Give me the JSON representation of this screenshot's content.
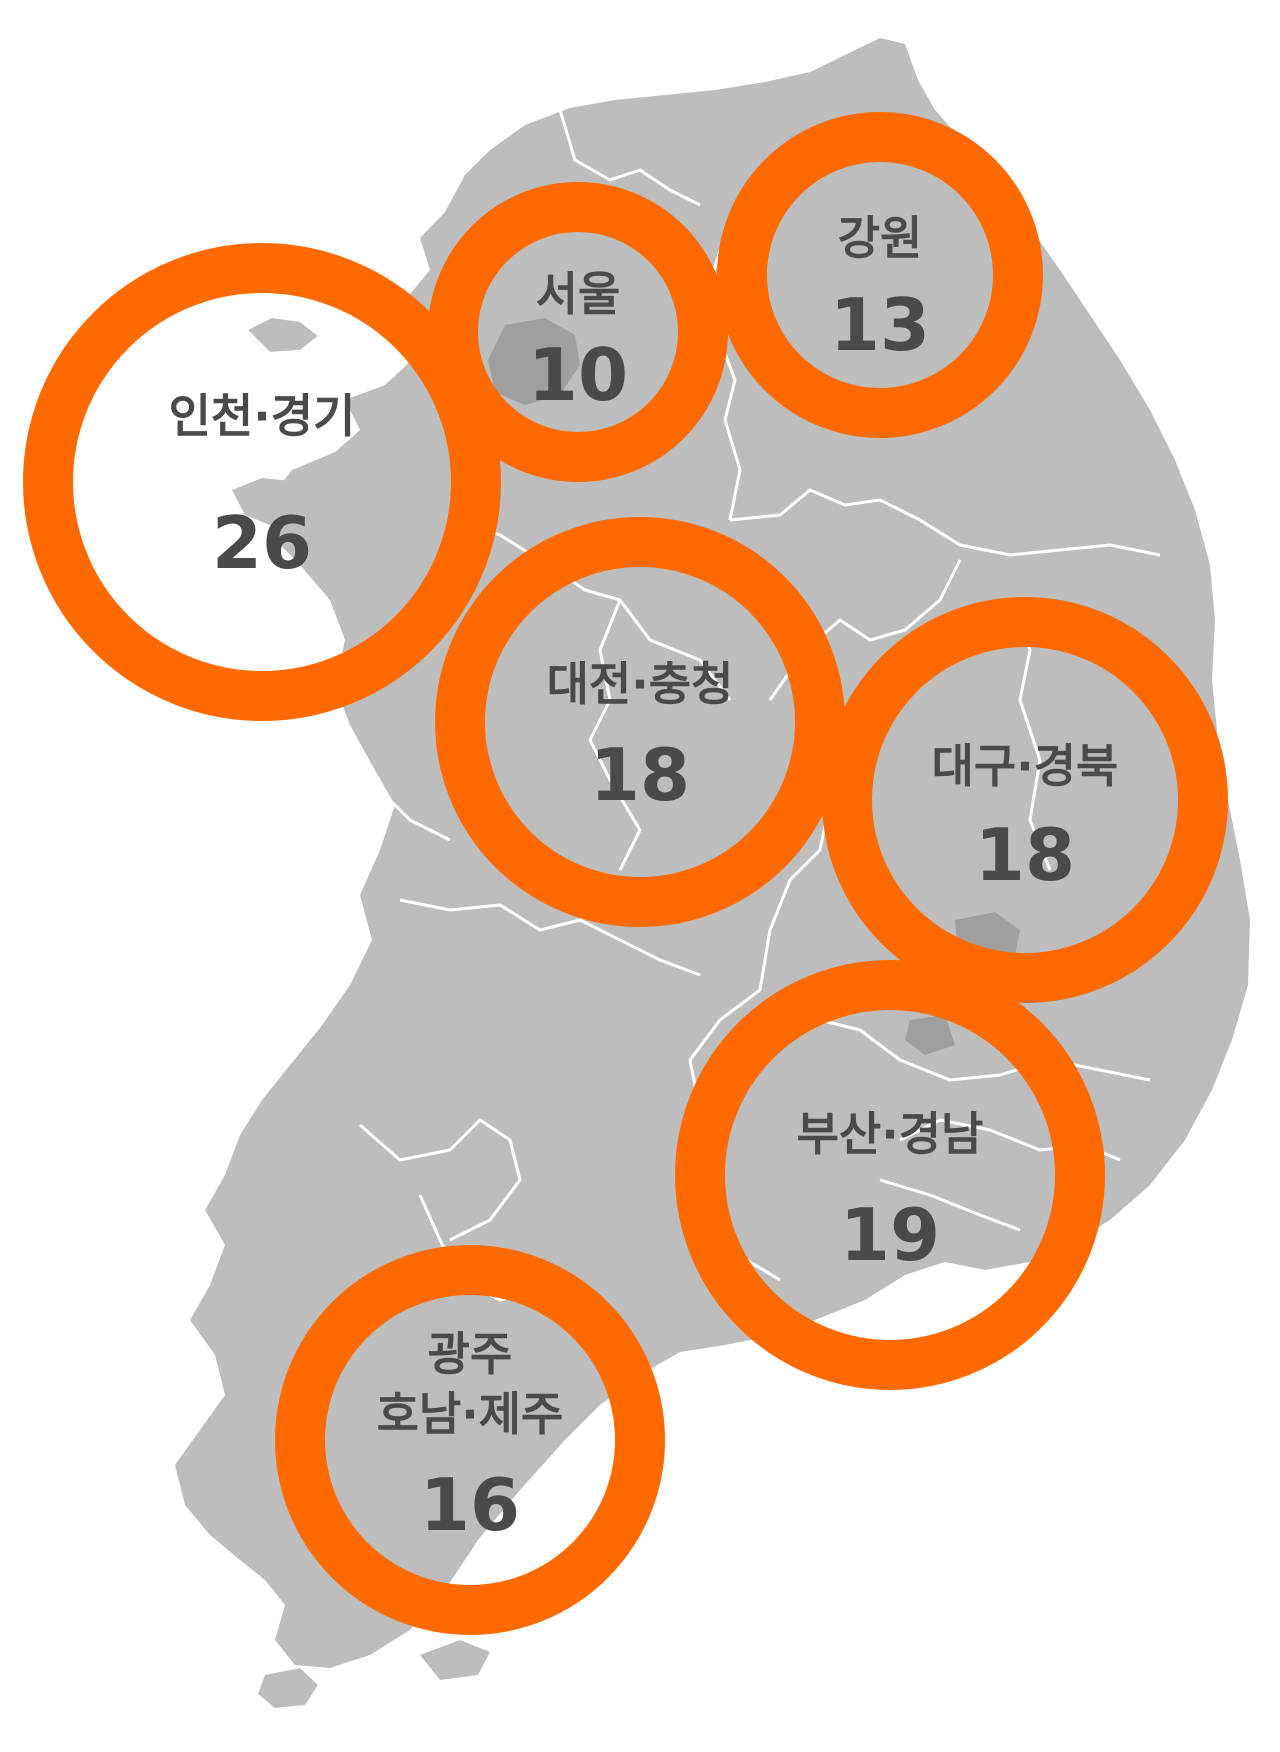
{
  "colors": {
    "land": "#bdbdbd",
    "district_lines": "#ffffff",
    "metro_highlight": "#9f9f9f",
    "ring": "#ff6a00",
    "text": "#4a4a4a"
  },
  "regions": [
    {
      "id": "incheon-gyeonggi",
      "name": "인천·경기",
      "count": "26"
    },
    {
      "id": "seoul",
      "name": "서울",
      "count": "10"
    },
    {
      "id": "gangwon",
      "name": "강원",
      "count": "13"
    },
    {
      "id": "daejeon-chungcheong",
      "name": "대전·충청",
      "count": "18"
    },
    {
      "id": "daegu-gyeongbuk",
      "name": "대구·경북",
      "count": "18"
    },
    {
      "id": "busan-gyeongnam",
      "name": "부산·경남",
      "count": "19"
    },
    {
      "id": "gwangju-honam-jeju",
      "name_line1": "광주",
      "name_line2": "호남·제주",
      "count": "16"
    }
  ]
}
